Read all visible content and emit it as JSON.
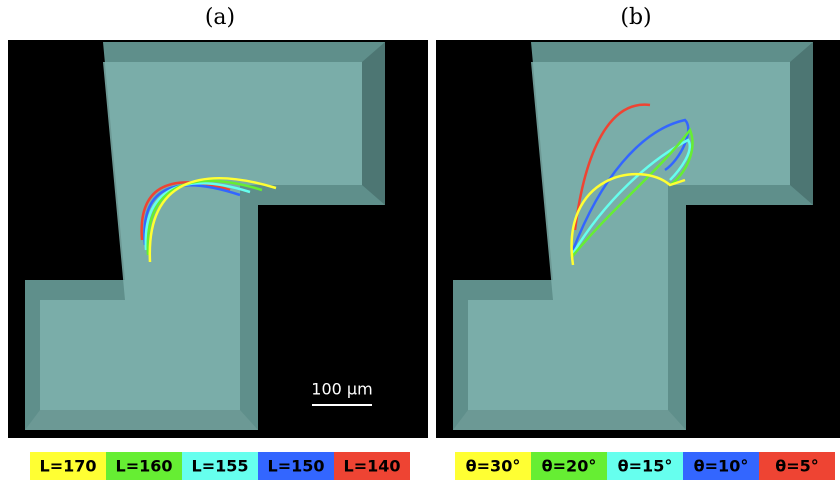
{
  "panels": [
    {
      "label": "(a)",
      "scale_bar": "100 μm",
      "legend": [
        "L=170",
        "L=160",
        "L=155",
        "L=150",
        "L=140"
      ]
    },
    {
      "label": "(b)",
      "legend": [
        "θ=30°",
        "θ=20°",
        "θ=15°",
        "θ=10°",
        "θ=5°"
      ]
    }
  ]
}
